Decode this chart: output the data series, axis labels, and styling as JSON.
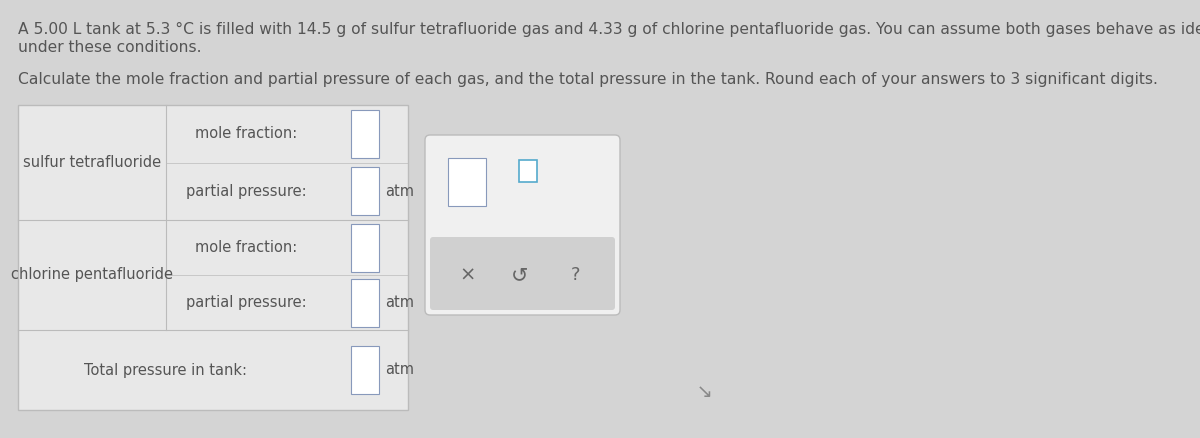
{
  "background_color": "#d4d4d4",
  "title_text1": "A 5.00 L tank at 5.3 °C is filled with 14.5 g of sulfur tetrafluoride gas and 4.33 g of chlorine pentafluoride gas. You can assume both gases behave as ideal gases",
  "title_text2": "under these conditions.",
  "subtitle_text": "Calculate the mole fraction and partial pressure of each gas, and the total pressure in the tank. Round each of your answers to 3 significant digits.",
  "text_color": "#555555",
  "font_size_title": 11.2,
  "font_size_table": 10.5,
  "table_bg": "#e8e8e8",
  "table_border": "#bbbbbb",
  "box_bg": "white",
  "box_border": "#8899bb",
  "popup_bg": "#e4e4e4",
  "popup_border": "#bbbbbb",
  "popup_bottom_bg": "#d0d0d0",
  "sup_box_border": "#55aacc"
}
